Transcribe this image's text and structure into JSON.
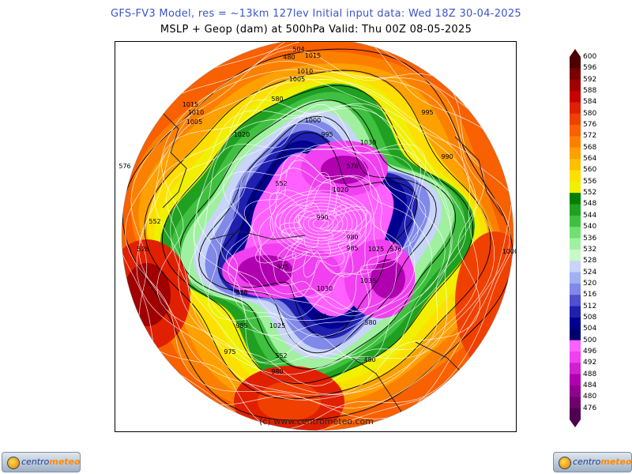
{
  "header": {
    "line1": "GFS-FV3 Model, res = ~13km 127lev    Initial input data: Wed 18Z 30-04-2025",
    "line2": "MSLP + Geop (dam) at 500hPa  Valid: Thu 00Z 08-05-2025"
  },
  "map": {
    "copyright": "(c) www.centrometeo.com",
    "pressure_labels": [
      "1015",
      "1010",
      "1005",
      "1000",
      "995",
      "990",
      "985",
      "980",
      "975",
      "1020",
      "1025",
      "1030",
      "1035"
    ],
    "geopotential_labels": [
      "576",
      "552",
      "528",
      "504",
      "480",
      "580"
    ]
  },
  "colorbar": {
    "labels": [
      "600",
      "596",
      "592",
      "588",
      "584",
      "580",
      "576",
      "572",
      "568",
      "564",
      "560",
      "556",
      "552",
      "548",
      "544",
      "540",
      "536",
      "532",
      "528",
      "524",
      "520",
      "516",
      "512",
      "508",
      "504",
      "500",
      "496",
      "492",
      "488",
      "484",
      "480",
      "476"
    ],
    "colors": [
      "#4d0000",
      "#7a0000",
      "#a00000",
      "#c80000",
      "#e02000",
      "#f04000",
      "#f86000",
      "#fc8000",
      "#fda000",
      "#fdc000",
      "#fde000",
      "#f0f000",
      "#008000",
      "#20a020",
      "#40c040",
      "#70e070",
      "#a0f0a0",
      "#c8f8c8",
      "#c8d4f8",
      "#a0b0f0",
      "#8088e8",
      "#5050d0",
      "#2020b0",
      "#000090",
      "#000070",
      "#ff60ff",
      "#f040f0",
      "#d020d0",
      "#b000b0",
      "#900090",
      "#700070",
      "#500050"
    ]
  },
  "logos": {
    "brand_a": "centro",
    "brand_b": "meteo"
  }
}
